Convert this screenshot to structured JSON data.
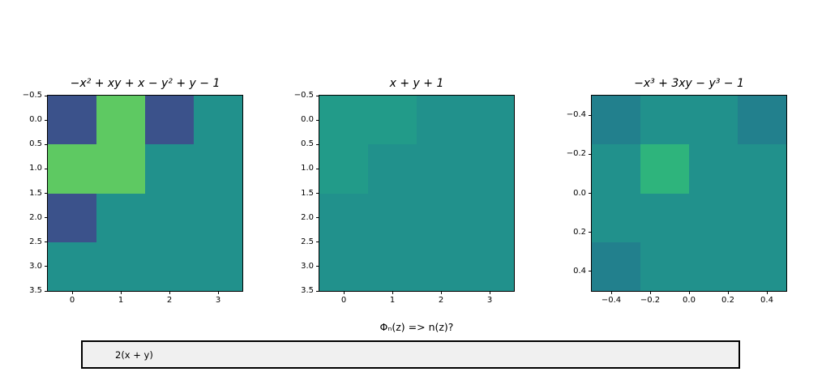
{
  "figure": {
    "background": "#ffffff",
    "textbox": {
      "value": "2(x + y)",
      "bg": "#f0f0f0",
      "border_color": "#000000"
    }
  },
  "chart_data": [
    {
      "type": "heatmap",
      "title": "−x² + xy + x − y² + y − 1",
      "x_range": [
        -0.5,
        3.5
      ],
      "y_range": [
        -0.5,
        3.5
      ],
      "xticks": [
        "0",
        "1",
        "2",
        "3"
      ],
      "xtick_pos": [
        0,
        1,
        2,
        3
      ],
      "yticks": [
        "−0.5",
        "0.0",
        "0.5",
        "1.0",
        "1.5",
        "2.0",
        "2.5",
        "3.0",
        "3.5"
      ],
      "ytick_pos": [
        -0.5,
        0,
        0.5,
        1,
        1.5,
        2,
        2.5,
        3,
        3.5
      ],
      "grid": "off",
      "cell_colors": [
        [
          "#3b528b",
          "#5ec962",
          "#3b528b",
          "#21918c"
        ],
        [
          "#5ec962",
          "#5ec962",
          "#21918c",
          "#21918c"
        ],
        [
          "#3b528b",
          "#21918c",
          "#21918c",
          "#21918c"
        ],
        [
          "#21918c",
          "#21918c",
          "#21918c",
          "#21918c"
        ]
      ]
    },
    {
      "type": "heatmap",
      "title": "x + y + 1",
      "xlabel": "Φₙ(z) => n(z)?",
      "x_range": [
        -0.5,
        3.5
      ],
      "y_range": [
        -0.5,
        3.5
      ],
      "xticks": [
        "0",
        "1",
        "2",
        "3"
      ],
      "xtick_pos": [
        0,
        1,
        2,
        3
      ],
      "yticks": [
        "−0.5",
        "0.0",
        "0.5",
        "1.0",
        "1.5",
        "2.0",
        "2.5",
        "3.0",
        "3.5"
      ],
      "ytick_pos": [
        -0.5,
        0,
        0.5,
        1,
        1.5,
        2,
        2.5,
        3,
        3.5
      ],
      "grid": "off",
      "cell_colors": [
        [
          "#229b89",
          "#229b89",
          "#21918c",
          "#21918c"
        ],
        [
          "#229b89",
          "#21918c",
          "#21918c",
          "#21918c"
        ],
        [
          "#21918c",
          "#21918c",
          "#21918c",
          "#21918c"
        ],
        [
          "#21918c",
          "#21918c",
          "#21918c",
          "#21918c"
        ]
      ]
    },
    {
      "type": "heatmap",
      "title": "−x³ + 3xy − y³ − 1",
      "x_range": [
        -0.5,
        0.5
      ],
      "y_range": [
        -0.5,
        0.5
      ],
      "xticks": [
        "−0.4",
        "−0.2",
        "0.0",
        "0.2",
        "0.4"
      ],
      "xtick_pos": [
        -0.4,
        -0.2,
        0,
        0.2,
        0.4
      ],
      "yticks": [
        "−0.4",
        "−0.2",
        "0.0",
        "0.2",
        "0.4"
      ],
      "ytick_pos": [
        -0.4,
        -0.2,
        0,
        0.2,
        0.4
      ],
      "grid": "off",
      "cell_colors": [
        [
          "#22808d",
          "#21918c",
          "#21918c",
          "#22808d"
        ],
        [
          "#21918c",
          "#2eb47c",
          "#21918c",
          "#21918c"
        ],
        [
          "#21918c",
          "#21918c",
          "#21918c",
          "#21918c"
        ],
        [
          "#22808d",
          "#21918c",
          "#21918c",
          "#21918c"
        ]
      ]
    }
  ]
}
